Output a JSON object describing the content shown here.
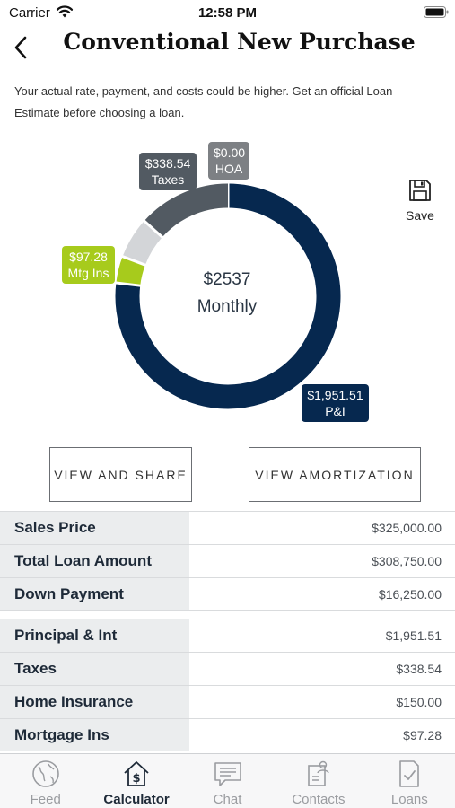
{
  "status_bar": {
    "carrier": "Carrier",
    "time": "12:58 PM"
  },
  "header": {
    "title": "Conventional New Purchase"
  },
  "disclaimer": "Your actual rate, payment, and costs could be higher. Get an official Loan Estimate before choosing a loan.",
  "chart_data": {
    "type": "pie",
    "title": "",
    "center_amount": "$2537",
    "center_label": "Monthly",
    "segments": [
      {
        "name": "P&I",
        "value": 1951.51,
        "label": "$1,951.51",
        "color": "#06284f"
      },
      {
        "name": "Mtg Ins",
        "value": 97.28,
        "label": "$97.28",
        "color": "#a7cb1c"
      },
      {
        "name": "Home Insurance",
        "value": 150.0,
        "label": "",
        "color": "#d3d5d8"
      },
      {
        "name": "Taxes",
        "value": 338.54,
        "label": "$338.54",
        "color": "#525a62"
      },
      {
        "name": "HOA",
        "value": 0.0,
        "label": "$0.00",
        "color": "#7d8084"
      }
    ]
  },
  "callouts": {
    "taxes": {
      "value": "$338.54",
      "name": "Taxes"
    },
    "hoa": {
      "value": "$0.00",
      "name": "HOA"
    },
    "mtg": {
      "value": "$97.28",
      "name": "Mtg Ins"
    },
    "pi": {
      "value": "$1,951.51",
      "name": "P&I"
    }
  },
  "save": {
    "label": "Save",
    "icon": "floppy-disk-icon"
  },
  "actions": {
    "share": "VIEW AND SHARE",
    "amortization": "VIEW AMORTIZATION"
  },
  "table": {
    "group1": [
      {
        "label": "Sales Price",
        "value": "$325,000.00"
      },
      {
        "label": "Total Loan Amount",
        "value": "$308,750.00"
      },
      {
        "label": "Down Payment",
        "value": "$16,250.00"
      }
    ],
    "group2": [
      {
        "label": "Principal & Int",
        "value": "$1,951.51"
      },
      {
        "label": "Taxes",
        "value": "$338.54"
      },
      {
        "label": "Home Insurance",
        "value": "$150.00"
      },
      {
        "label": "Mortgage Ins",
        "value": "$97.28"
      }
    ]
  },
  "tabs": [
    {
      "label": "Feed",
      "icon": "globe-icon"
    },
    {
      "label": "Calculator",
      "icon": "house-dollar-icon"
    },
    {
      "label": "Chat",
      "icon": "chat-icon"
    },
    {
      "label": "Contacts",
      "icon": "contacts-icon"
    },
    {
      "label": "Loans",
      "icon": "document-check-icon"
    }
  ],
  "active_tab": "Calculator",
  "colors": {
    "navy": "#06284f",
    "lime": "#a7cb1c",
    "gray_dark": "#525a62",
    "gray_light": "#d3d5d8"
  }
}
